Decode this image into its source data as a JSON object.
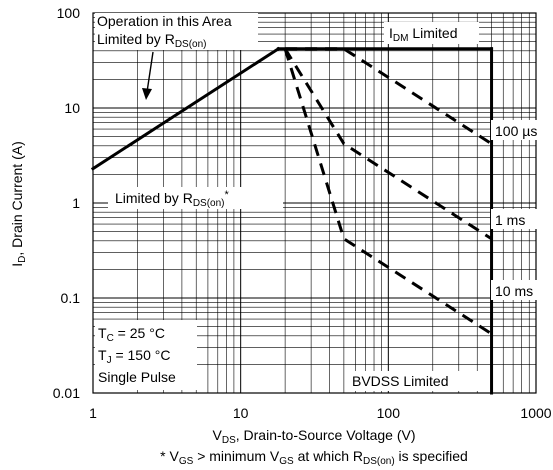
{
  "chart_data": {
    "type": "line",
    "title": "",
    "x_scale": "log",
    "y_scale": "log",
    "xlim": [
      1,
      1000
    ],
    "ylim": [
      0.01,
      100
    ],
    "grid": true,
    "x_ticks": [
      "1",
      "10",
      "100",
      "1000"
    ],
    "y_ticks": [
      "0.01",
      "0.1",
      "1",
      "10",
      "100"
    ],
    "xlabel": {
      "pre": "V",
      "sub": "DS",
      "post": ", Drain-to-Source Voltage (V)"
    },
    "ylabel": {
      "pre": "I",
      "sub": "D",
      "post": ", Drain Current (A)"
    },
    "footnote": {
      "t1": "* V",
      "s1": "GS",
      "t2": " > minimum V",
      "s2": "GS",
      "t3": " at which R",
      "s3": "DS(on)",
      "t4": " is specified"
    },
    "boundary": {
      "rdson_line": {
        "x": [
          1,
          18
        ],
        "y": [
          2.3,
          42
        ]
      },
      "idm_line": {
        "x": [
          18,
          500
        ],
        "y": [
          42,
          42
        ]
      },
      "bvdss_line": {
        "x": [
          500,
          500
        ],
        "y": [
          42,
          0.01
        ]
      }
    },
    "series": [
      {
        "name": "100 µs",
        "x": [
          20,
          50,
          500
        ],
        "y": [
          42,
          42,
          4.2
        ]
      },
      {
        "name": "1 ms",
        "x": [
          20,
          50,
          500
        ],
        "y": [
          42,
          4.2,
          0.42
        ]
      },
      {
        "name": "10 ms",
        "x": [
          20,
          50,
          500
        ],
        "y": [
          42,
          0.42,
          0.042
        ]
      }
    ],
    "annotations": {
      "operation_area": {
        "line1": "Operation in this Area",
        "line2_pre": "Limited by R",
        "line2_sub": "DS(on)"
      },
      "idm_limited": {
        "pre": "I",
        "sub": "DM",
        "post": " Limited"
      },
      "rdson_limited": {
        "pre": "Limited by R",
        "sub": "DS(on)",
        "post": "*"
      },
      "bvdss_limited": "BVDSS Limited",
      "conditions": {
        "tc": {
          "pre": "T",
          "sub": "C",
          "post": " = 25 °C"
        },
        "tj": {
          "pre": "T",
          "sub": "J",
          "post": " = 150 °C"
        },
        "pulse": "Single Pulse"
      }
    }
  }
}
